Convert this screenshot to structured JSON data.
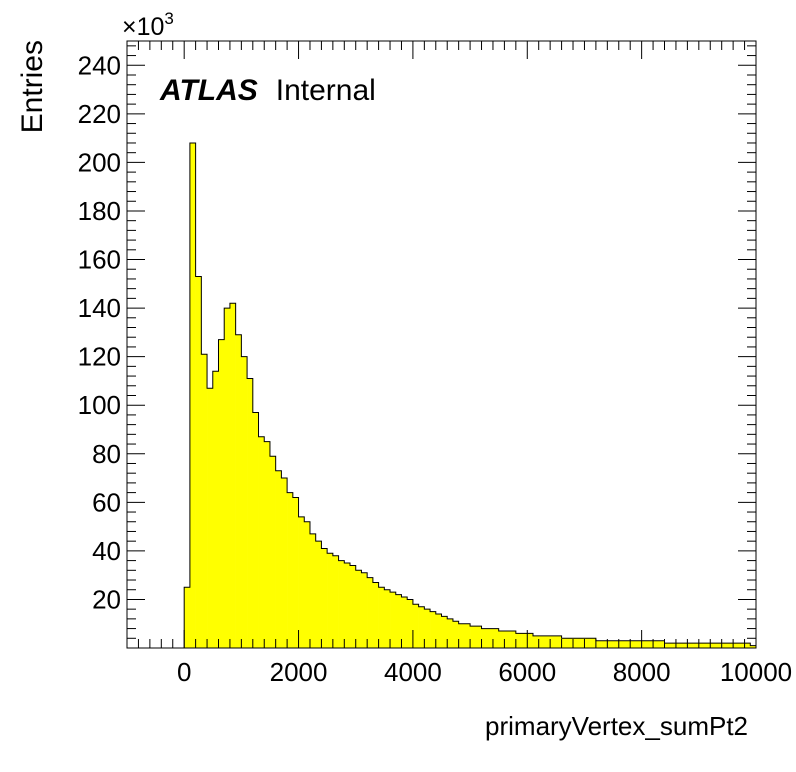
{
  "chart_data": {
    "type": "histogram",
    "xlabel": "primaryVertex_sumPt2",
    "ylabel": "Entries",
    "y_multiplier": "×10",
    "y_multiplier_exp": "3",
    "label_bold": "ATLAS",
    "label_normal": "Internal",
    "xlim": [
      -1000,
      10000
    ],
    "ylim": [
      0,
      250
    ],
    "x_ticks": [
      0,
      2000,
      4000,
      6000,
      8000,
      10000
    ],
    "y_ticks": [
      20,
      40,
      60,
      80,
      100,
      120,
      140,
      160,
      180,
      200,
      220,
      240
    ],
    "bin_start": 0,
    "bin_width": 100,
    "values": [
      25,
      208,
      153,
      121,
      107,
      114,
      127,
      140,
      142,
      129,
      120,
      111,
      97,
      87,
      85,
      79,
      73,
      70,
      64,
      62,
      54,
      52,
      47,
      44,
      41,
      39,
      38,
      36,
      35,
      34,
      32,
      31,
      29,
      27,
      25,
      24,
      23,
      22,
      21,
      20,
      18,
      17,
      16,
      15,
      14,
      13,
      12,
      11,
      10,
      10,
      9,
      9,
      8,
      8,
      8,
      7,
      7,
      7,
      6,
      6,
      6,
      5,
      5,
      5,
      5,
      5,
      4,
      4,
      4,
      4,
      4,
      4,
      3,
      3,
      3,
      3,
      3,
      3,
      3,
      3,
      3,
      3,
      3,
      3,
      2,
      2,
      2,
      2,
      2,
      2,
      2,
      2,
      2,
      2,
      2,
      2,
      2,
      2,
      2,
      1
    ],
    "fill_color": "#ffff00",
    "line_color": "#000000"
  }
}
